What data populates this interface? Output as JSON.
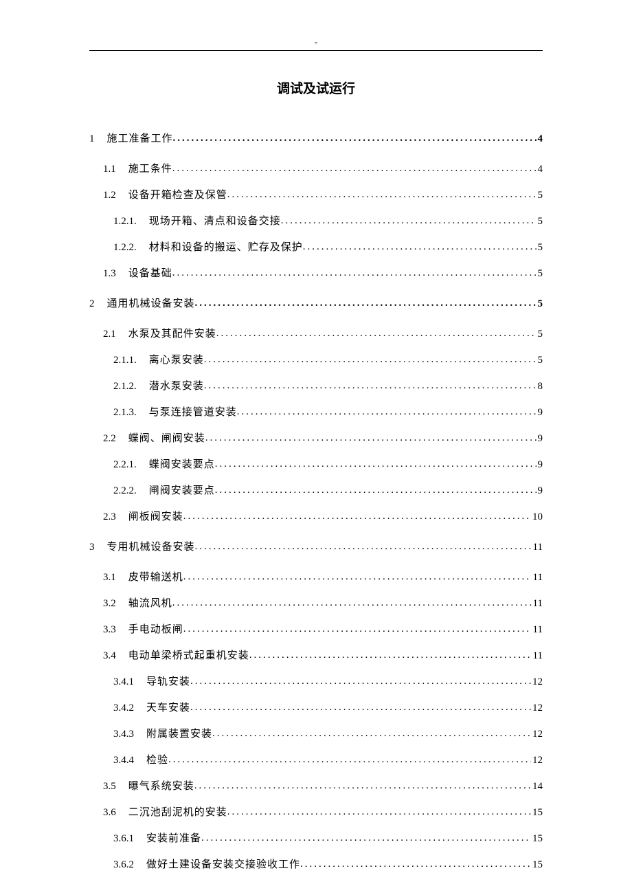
{
  "title": "调试及试运行",
  "toc": [
    {
      "level": 1,
      "num": "1",
      "text": "施工准备工作",
      "page": "4",
      "bold": true
    },
    {
      "level": 2,
      "num": "1.1",
      "text": "施工条件",
      "page": "4"
    },
    {
      "level": 2,
      "num": "1.2",
      "text": "设备开箱检查及保管",
      "page": "5"
    },
    {
      "level": 3,
      "num": "1.2.1.",
      "text": "现场开箱、清点和设备交接",
      "page": "5"
    },
    {
      "level": 3,
      "num": "1.2.2.",
      "text": "材料和设备的搬运、贮存及保护",
      "page": "5"
    },
    {
      "level": 2,
      "num": "1.3",
      "text": "设备基础",
      "page": "5"
    },
    {
      "level": 1,
      "num": "2",
      "text": "通用机械设备安装",
      "page": "5",
      "bold": true
    },
    {
      "level": 2,
      "num": "2.1",
      "text": "水泵及其配件安装",
      "page": "5"
    },
    {
      "level": 3,
      "num": "2.1.1.",
      "text": "离心泵安装",
      "page": "5"
    },
    {
      "level": 3,
      "num": "2.1.2.",
      "text": "潜水泵安装",
      "page": "8"
    },
    {
      "level": 3,
      "num": "2.1.3.",
      "text": "与泵连接管道安装",
      "page": "9"
    },
    {
      "level": 2,
      "num": "2.2",
      "text": "蝶阀、闸阀安装",
      "page": "9"
    },
    {
      "level": 3,
      "num": "2.2.1.",
      "text": "蝶阀安装要点",
      "page": "9"
    },
    {
      "level": 3,
      "num": "2.2.2.",
      "text": "闸阀安装要点",
      "page": "9"
    },
    {
      "level": 2,
      "num": "2.3",
      "text": "闸板阀安装",
      "page": "10"
    },
    {
      "level": 1,
      "num": "3",
      "text": "专用机械设备安装",
      "page": "11"
    },
    {
      "level": 2,
      "num": "3.1",
      "text": "皮带输送机",
      "page": "11"
    },
    {
      "level": 2,
      "num": "3.2",
      "text": "轴流风机",
      "page": "11"
    },
    {
      "level": 2,
      "num": "3.3",
      "text": "手电动板闸",
      "page": "11"
    },
    {
      "level": 2,
      "num": "3.4",
      "text": "电动单梁桥式起重机安装",
      "page": "11"
    },
    {
      "level": 3,
      "num": "3.4.1",
      "text": "导轨安装",
      "page": "12"
    },
    {
      "level": 3,
      "num": "3.4.2",
      "text": "天车安装",
      "page": "12"
    },
    {
      "level": 3,
      "num": "3.4.3",
      "text": "附属装置安装",
      "page": "12"
    },
    {
      "level": 3,
      "num": "3.4.4",
      "text": "检验",
      "page": "12"
    },
    {
      "level": 2,
      "num": "3.5",
      "text": "曝气系统安装",
      "page": "14"
    },
    {
      "level": 2,
      "num": "3.6",
      "text": "二沉池刮泥机的安装",
      "page": "15"
    },
    {
      "level": 3,
      "num": "3.6.1",
      "text": "安装前准备",
      "page": "15"
    },
    {
      "level": 3,
      "num": "3.6.2",
      "text": "做好土建设备安装交接验收工作",
      "page": "15"
    }
  ]
}
